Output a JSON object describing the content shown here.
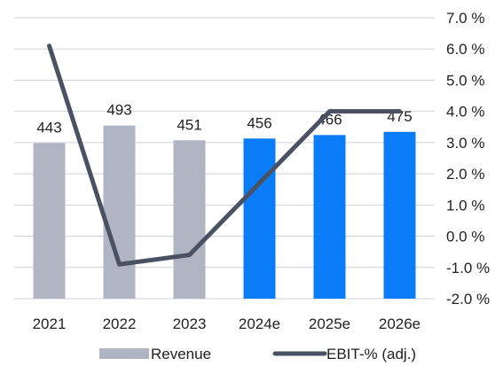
{
  "chart_data": {
    "type": "bar",
    "categories": [
      "2021",
      "2022",
      "2023",
      "2024e",
      "2025e",
      "2026e"
    ],
    "series": [
      {
        "name": "Revenue",
        "chart": "bar",
        "axis": "none",
        "values": [
          443,
          493,
          451,
          456,
          466,
          475
        ],
        "colors": [
          "#b0b4c3",
          "#b0b4c3",
          "#b0b4c3",
          "#0a7cf7",
          "#0a7cf7",
          "#0a7cf7"
        ]
      },
      {
        "name": "EBIT-% (adj.)",
        "chart": "line",
        "axis": "right",
        "values": [
          6.1,
          -0.9,
          -0.6,
          1.7,
          4.0,
          4.0
        ],
        "color": "#4a5162"
      }
    ],
    "right_axis": {
      "range": [
        -2.0,
        7.0
      ],
      "ticks": [
        "7.0 %",
        "6.0 %",
        "5.0 %",
        "4.0 %",
        "3.0 %",
        "2.0 %",
        "1.0 %",
        "0.0 %",
        "-1.0 %",
        "-2.0 %"
      ]
    },
    "bar_value_range": [
      0,
      800
    ],
    "grid": true,
    "legend_position": "bottom",
    "legend": [
      {
        "label": "Revenue",
        "kind": "bar",
        "color": "#b0b4c3"
      },
      {
        "label": "EBIT-% (adj.)",
        "kind": "line",
        "color": "#4a5162"
      }
    ],
    "grid_color": "#cfd2d8"
  }
}
